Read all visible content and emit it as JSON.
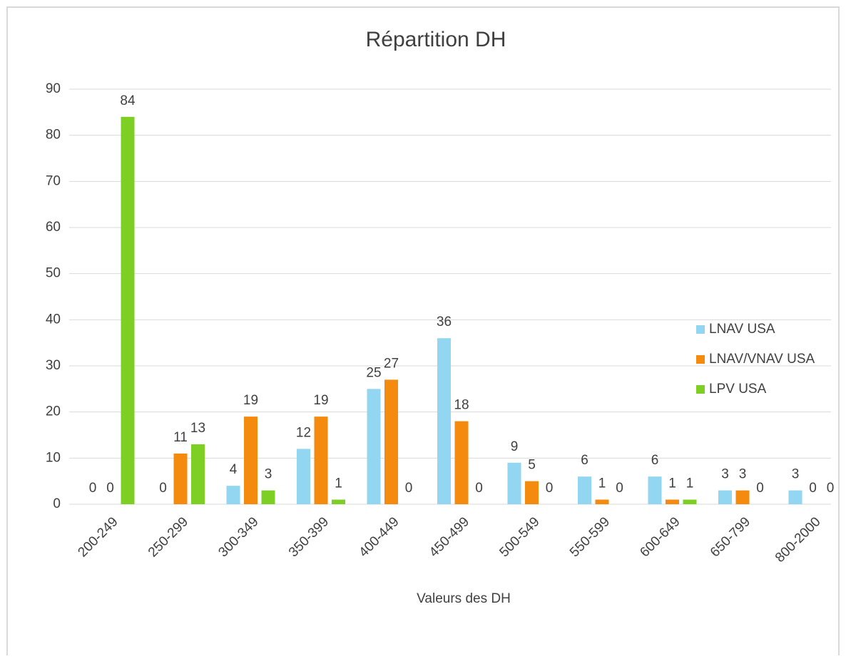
{
  "chart_data": {
    "type": "bar",
    "title": "Répartition DH",
    "x_label": "Valeurs des DH",
    "categories": [
      "200-249",
      "250-299",
      "300-349",
      "350-399",
      "400-449",
      "450-499",
      "500-549",
      "550-599",
      "600-649",
      "650-799",
      "800-2000"
    ],
    "series": [
      {
        "name": "LNAV USA",
        "color": "#92d6f2",
        "values": [
          0,
          0,
          4,
          12,
          25,
          36,
          9,
          6,
          6,
          3,
          3
        ]
      },
      {
        "name": "LNAV/VNAV USA",
        "color": "#f48a0e",
        "values": [
          0,
          11,
          19,
          19,
          27,
          18,
          5,
          1,
          1,
          3,
          0
        ]
      },
      {
        "name": "LPV USA",
        "color": "#7dd023",
        "values": [
          84,
          13,
          3,
          1,
          0,
          0,
          0,
          0,
          1,
          0,
          0
        ]
      }
    ],
    "ylim": [
      0,
      90
    ],
    "yticks": [
      0,
      10,
      20,
      30,
      40,
      50,
      60,
      70,
      80,
      90
    ],
    "grid": true,
    "legend": "right"
  }
}
